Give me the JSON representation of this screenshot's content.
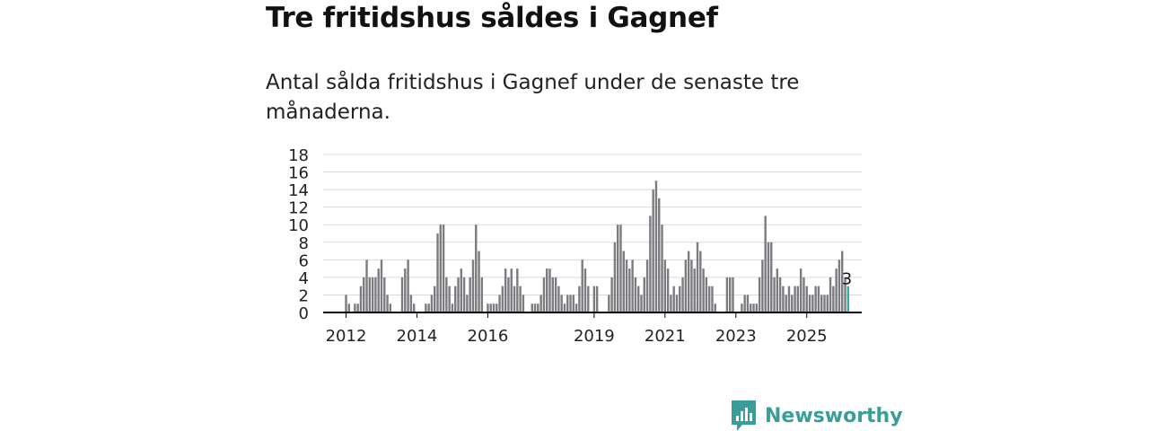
{
  "header": {
    "title": "Tre fritidshus såldes i Gagnef",
    "subtitle": "Antal sålda fritidshus i Gagnef under de senaste tre månaderna."
  },
  "brand": {
    "name": "Newsworthy",
    "icon": "newsworthy-logo-icon",
    "color": "#3a9e98"
  },
  "colors": {
    "bar": "#7b7b80",
    "highlight": "#2bb0a6",
    "grid": "#d9d9d9",
    "axis": "#000000"
  },
  "chart_data": {
    "type": "bar",
    "x_start": "2012-01",
    "x_end": "2025-12",
    "x_ticks": [
      "2012",
      "2014",
      "2016",
      "2019",
      "2021",
      "2023",
      "2025"
    ],
    "y_ticks": [
      "0",
      "2",
      "4",
      "6",
      "8",
      "10",
      "12",
      "14",
      "16",
      "18"
    ],
    "ylim": [
      0,
      18
    ],
    "grid": true,
    "values": [
      2,
      1,
      0,
      1,
      1,
      3,
      4,
      6,
      4,
      4,
      4,
      5,
      6,
      4,
      2,
      1,
      0,
      0,
      0,
      4,
      5,
      6,
      2,
      1,
      0,
      0,
      0,
      1,
      1,
      2,
      3,
      9,
      10,
      10,
      4,
      3,
      1,
      3,
      4,
      5,
      4,
      2,
      4,
      6,
      10,
      7,
      4,
      0,
      1,
      1,
      1,
      1,
      2,
      3,
      5,
      4,
      5,
      3,
      5,
      3,
      2,
      0,
      0,
      1,
      1,
      1,
      2,
      4,
      5,
      5,
      4,
      4,
      3,
      2,
      1,
      2,
      2,
      2,
      1,
      3,
      6,
      5,
      3,
      0,
      3,
      3,
      0,
      0,
      0,
      2,
      4,
      8,
      10,
      10,
      7,
      6,
      5,
      6,
      4,
      3,
      2,
      4,
      6,
      11,
      14,
      15,
      13,
      10,
      6,
      5,
      2,
      3,
      2,
      3,
      4,
      6,
      7,
      6,
      5,
      8,
      7,
      5,
      4,
      3,
      3,
      1,
      0,
      0,
      0,
      4,
      4,
      4,
      0,
      0,
      1,
      2,
      2,
      1,
      1,
      1,
      4,
      6,
      11,
      8,
      8,
      4,
      5,
      4,
      3,
      2,
      3,
      2,
      3,
      3,
      5,
      4,
      3,
      2,
      2,
      3,
      3,
      2,
      2,
      2,
      4,
      3,
      5,
      6,
      7,
      4,
      3,
      0
    ],
    "highlight": {
      "value": 3,
      "label": "3"
    }
  }
}
